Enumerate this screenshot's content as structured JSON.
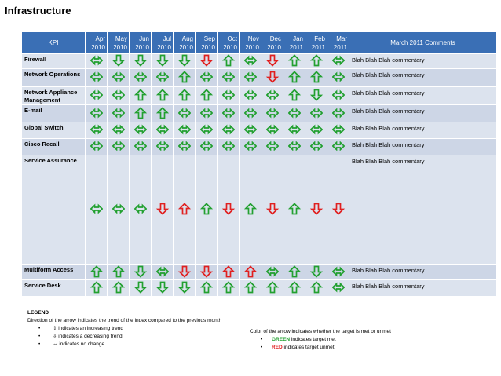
{
  "title": "Infrastructure",
  "header": {
    "kpi": "KPI",
    "comments": "March 2011 Comments",
    "months": [
      {
        "m": "Apr",
        "y": "2010"
      },
      {
        "m": "May",
        "y": "2010"
      },
      {
        "m": "Jun",
        "y": "2010"
      },
      {
        "m": "Jul",
        "y": "2010"
      },
      {
        "m": "Aug",
        "y": "2010"
      },
      {
        "m": "Sep",
        "y": "2010"
      },
      {
        "m": "Oct",
        "y": "2010"
      },
      {
        "m": "Nov",
        "y": "2010"
      },
      {
        "m": "Dec",
        "y": "2010"
      },
      {
        "m": "Jan",
        "y": "2011"
      },
      {
        "m": "Feb",
        "y": "2011"
      },
      {
        "m": "Mar",
        "y": "2011"
      }
    ]
  },
  "rows": [
    {
      "kpi": "Firewall",
      "comment": "Blah Blah Blah commentary",
      "trend": [
        "nc",
        "down",
        "down",
        "down",
        "down",
        "down",
        "up",
        "nc",
        "down",
        "up",
        "up",
        "nc"
      ],
      "status": [
        "g",
        "g",
        "g",
        "g",
        "g",
        "r",
        "g",
        "g",
        "r",
        "g",
        "g",
        "g"
      ]
    },
    {
      "kpi": "Network Operations",
      "comment": "Blah Blah Blah commentary",
      "trend": [
        "nc",
        "nc",
        "nc",
        "nc",
        "up",
        "nc",
        "nc",
        "nc",
        "down",
        "up",
        "up",
        "nc"
      ],
      "status": [
        "g",
        "g",
        "g",
        "g",
        "g",
        "g",
        "g",
        "g",
        "r",
        "g",
        "g",
        "g"
      ]
    },
    {
      "kpi": "Network Appliance Management",
      "comment": "Blah Blah Blah commentary",
      "trend": [
        "nc",
        "nc",
        "up",
        "up",
        "up",
        "up",
        "nc",
        "nc",
        "nc",
        "up",
        "down",
        "nc"
      ],
      "status": [
        "g",
        "g",
        "g",
        "g",
        "g",
        "g",
        "g",
        "g",
        "g",
        "g",
        "g",
        "g"
      ]
    },
    {
      "kpi": "E-mail",
      "comment": "Blah Blah Blah commentary",
      "trend": [
        "nc",
        "nc",
        "up",
        "up",
        "nc",
        "nc",
        "nc",
        "nc",
        "nc",
        "nc",
        "nc",
        "nc"
      ],
      "status": [
        "g",
        "g",
        "g",
        "g",
        "g",
        "g",
        "g",
        "g",
        "g",
        "g",
        "g",
        "g"
      ]
    },
    {
      "kpi": "Global Switch",
      "comment": "Blah Blah Blah commentary",
      "trend": [
        "nc",
        "nc",
        "nc",
        "nc",
        "nc",
        "nc",
        "nc",
        "nc",
        "nc",
        "nc",
        "nc",
        "nc"
      ],
      "status": [
        "g",
        "g",
        "g",
        "g",
        "g",
        "g",
        "g",
        "g",
        "g",
        "g",
        "g",
        "g"
      ]
    },
    {
      "kpi": "Cisco Recall",
      "comment": "Blah Blah Blah commentary",
      "trend": [
        "nc",
        "nc",
        "nc",
        "nc",
        "nc",
        "nc",
        "nc",
        "nc",
        "nc",
        "nc",
        "nc",
        "nc"
      ],
      "status": [
        "g",
        "g",
        "g",
        "g",
        "g",
        "g",
        "g",
        "g",
        "g",
        "g",
        "g",
        "g"
      ]
    },
    {
      "kpi": "Service Assurance",
      "comment": "Blah Blah Blah commentary",
      "tall": true,
      "trend": [
        "nc",
        "nc",
        "nc",
        "down",
        "up",
        "up",
        "down",
        "up",
        "down",
        "up",
        "down",
        "down"
      ],
      "status": [
        "g",
        "g",
        "g",
        "r",
        "r",
        "g",
        "r",
        "g",
        "r",
        "g",
        "r",
        "r"
      ]
    },
    {
      "kpi": "Multiform Access",
      "comment": "Blah Blah Blah commentary",
      "trend": [
        "up",
        "up",
        "down",
        "nc",
        "down",
        "down",
        "up",
        "up",
        "nc",
        "up",
        "down",
        "nc"
      ],
      "status": [
        "g",
        "g",
        "g",
        "g",
        "r",
        "r",
        "r",
        "r",
        "g",
        "g",
        "g",
        "g"
      ]
    },
    {
      "kpi": "Service Desk",
      "comment": "Blah Blah Blah commentary",
      "trend": [
        "up",
        "up",
        "down",
        "down",
        "down",
        "up",
        "up",
        "up",
        "up",
        "up",
        "up",
        "nc"
      ],
      "status": [
        "g",
        "g",
        "g",
        "g",
        "g",
        "g",
        "g",
        "g",
        "g",
        "g",
        "g",
        "g"
      ]
    }
  ],
  "colors": {
    "green": "#22a030",
    "red": "#e02020"
  },
  "legend": {
    "heading": "LEGEND",
    "direction_text": "Direction of the arrow indicates the trend of the index compared to the previous month",
    "items": [
      {
        "glyph": "⇧",
        "text": "indicates an increasing trend"
      },
      {
        "glyph": "⇩",
        "text": "indicates a decreasing trend"
      },
      {
        "glyph": "⇔",
        "text": "indicates no change"
      }
    ],
    "color_text": "Color of the arrow indicates whether the target is met or unmet",
    "green_word": "GREEN",
    "green_text": "indicates target met",
    "red_word": "RED",
    "red_text": "indicates target unmet"
  }
}
